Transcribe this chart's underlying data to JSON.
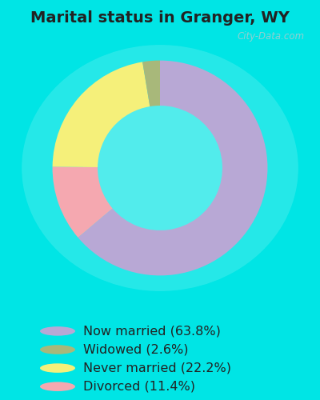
{
  "title": "Marital status in Granger, WY",
  "slices": [
    63.8,
    11.4,
    22.2,
    2.6
  ],
  "labels": [
    "Now married (63.8%)",
    "Widowed (2.6%)",
    "Never married (22.2%)",
    "Divorced (11.4%)"
  ],
  "legend_colors": [
    "#b8a8d5",
    "#a8b87a",
    "#f5f07a",
    "#f5a8b0"
  ],
  "pie_colors": [
    "#b8a8d5",
    "#f5a8b0",
    "#f5f07a",
    "#a8b87a"
  ],
  "background_outer": "#00e5e5",
  "background_chart": "#d8eedc",
  "title_fontsize": 14,
  "legend_fontsize": 11.5,
  "watermark": "City-Data.com",
  "start_angle": 90
}
